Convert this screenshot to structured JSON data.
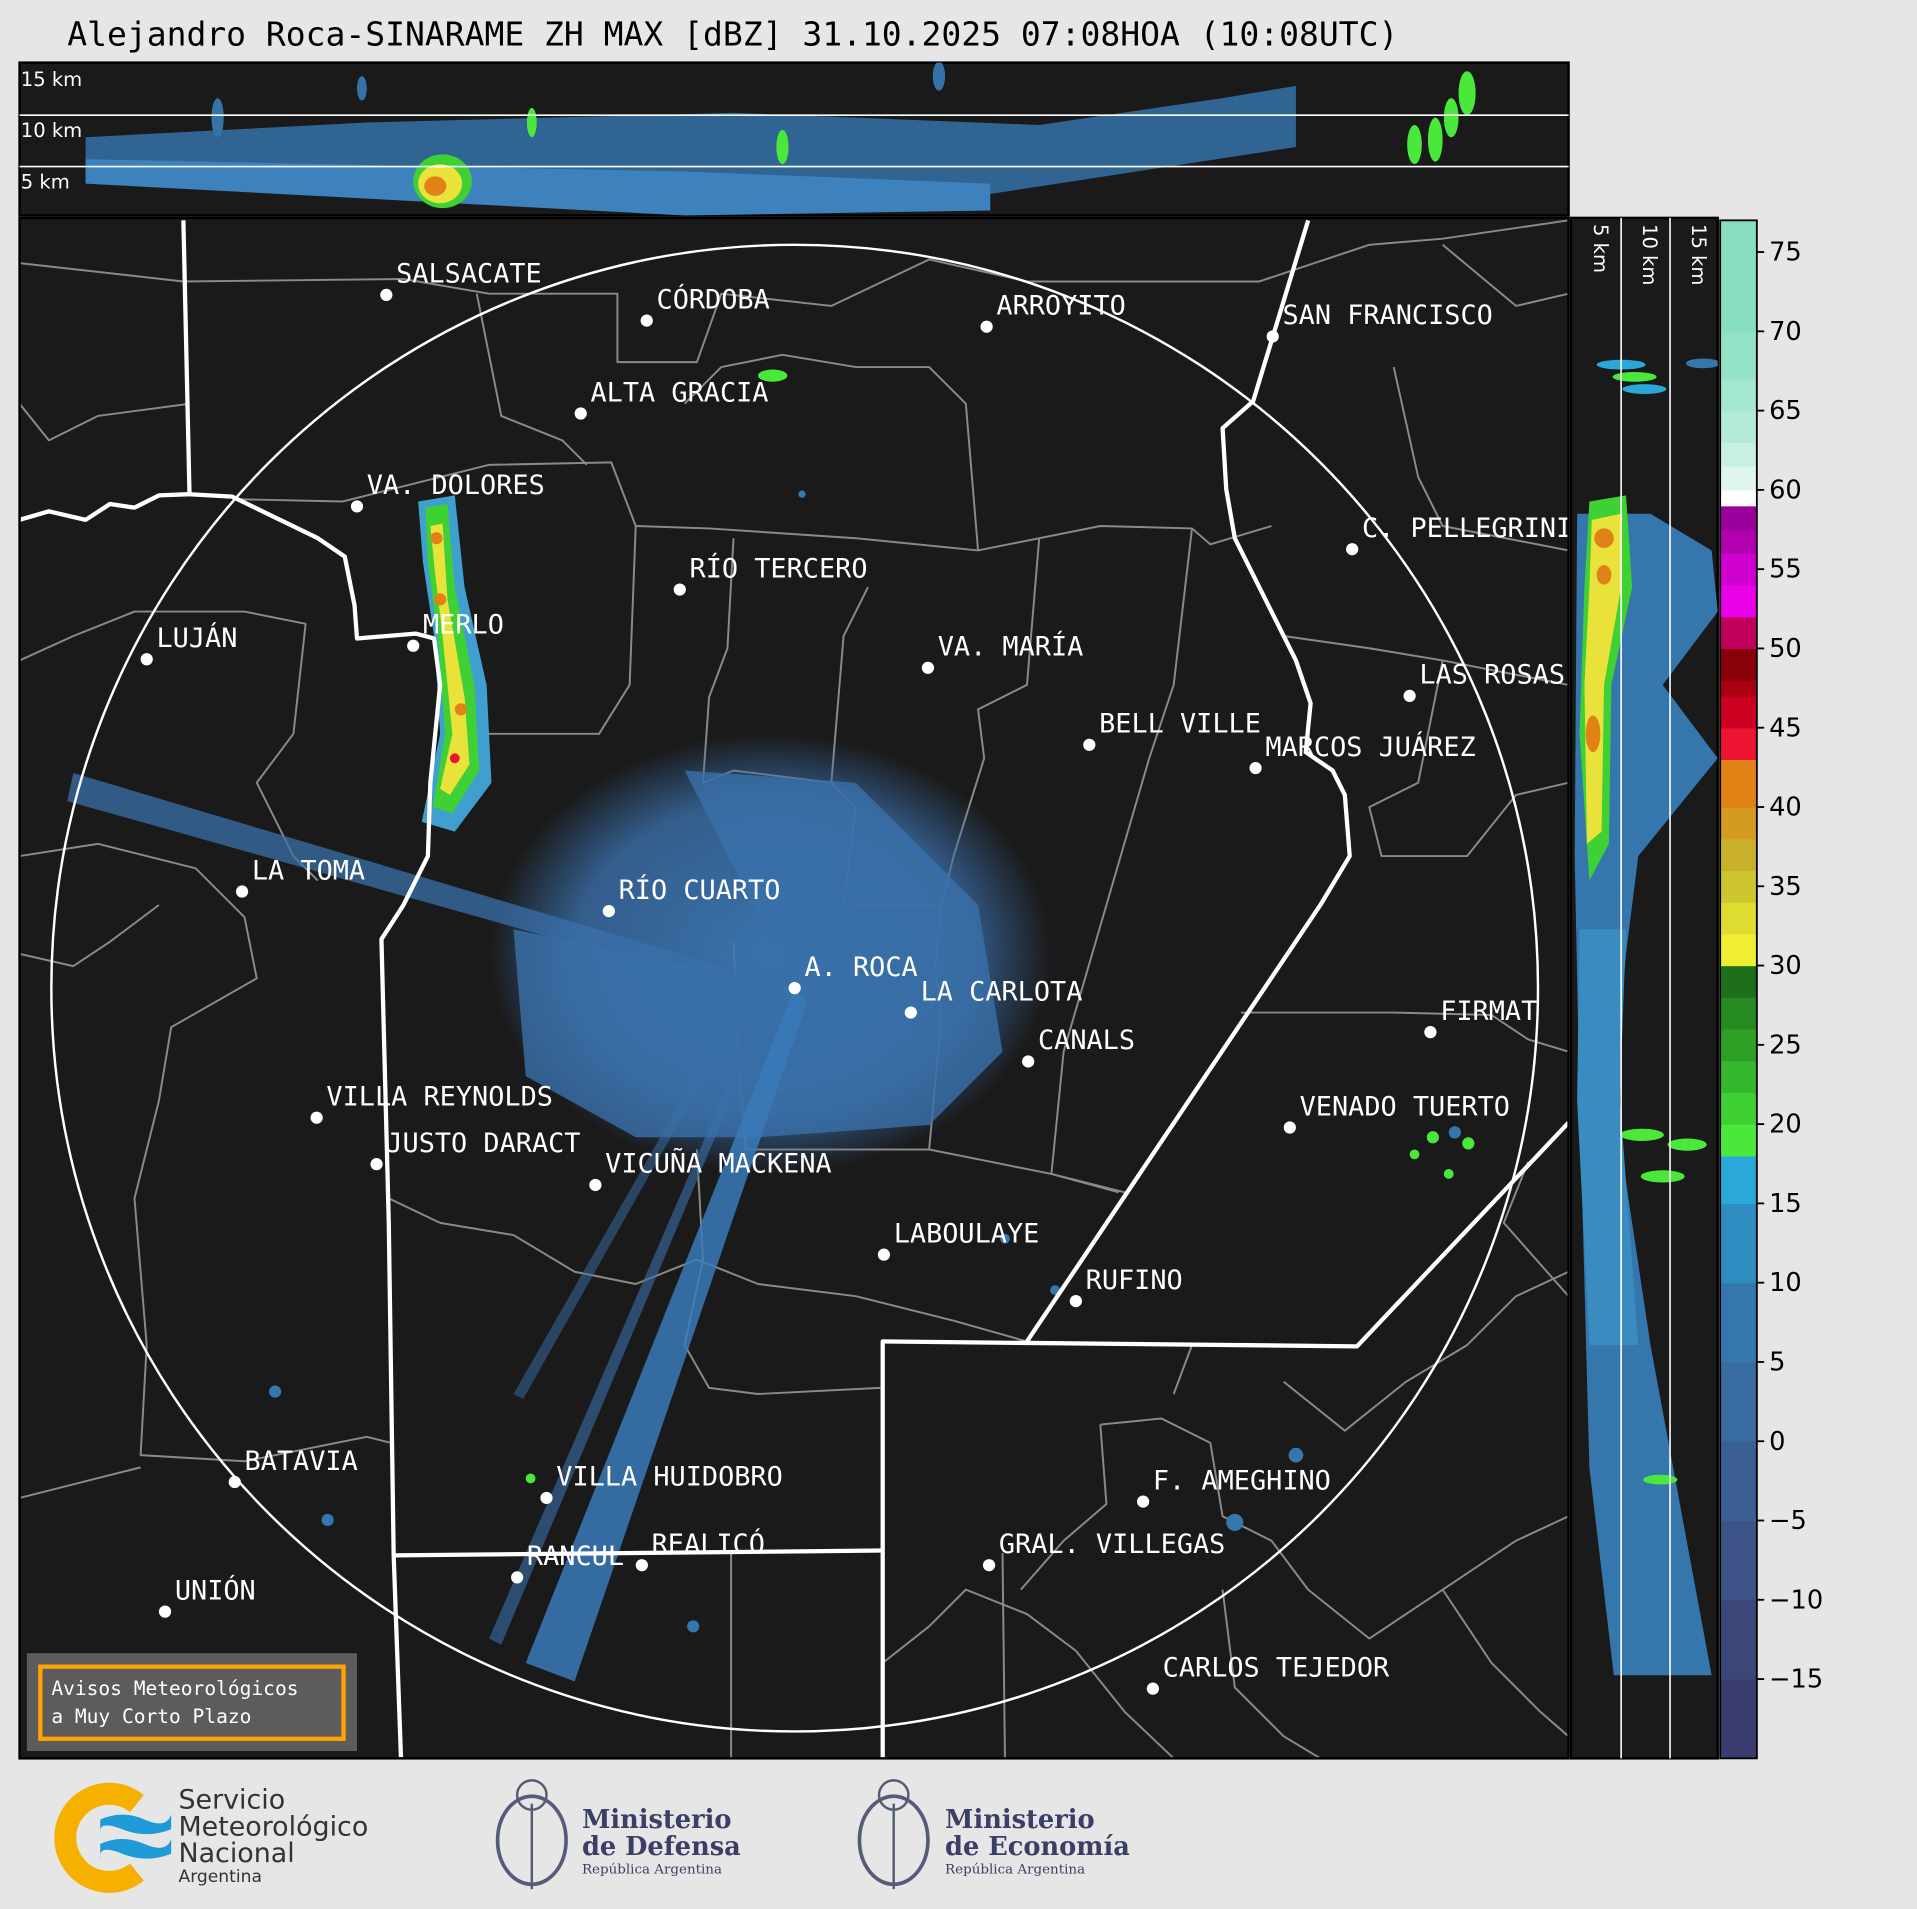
{
  "title": "Alejandro Roca-SINARAME ZH MAX [dBZ] 31.10.2025 07:08HOA (10:08UTC)",
  "top_section": {
    "labels": [
      "15 km",
      "10 km",
      "5 km"
    ]
  },
  "side_section": {
    "labels": [
      "5 km",
      "10 km",
      "15 km"
    ]
  },
  "map": {
    "radar_site": "A. ROCA",
    "range_ring_color": "#ffffff",
    "province_border_color": "#ffffff",
    "department_border_color": "#8a8a8a",
    "background_color": "#1a1a1a",
    "cities": [
      "SALSACATE",
      "CÓRDOBA",
      "ARROYITO",
      "SAN FRANCISCO",
      "ALTA GRACIA",
      "VA. DOLORES",
      "C. PELLEGRINI",
      "RÍO TERCERO",
      "LUJÁN",
      "MERLO",
      "VA. MARÍA",
      "LAS ROSAS",
      "BELL VILLE",
      "MARCOS JUÁREZ",
      "LA TOMA",
      "RÍO CUARTO",
      "A. ROCA",
      "LA CARLOTA",
      "CANALS",
      "FIRMAT",
      "VILLA REYNOLDS",
      "VENADO TUERTO",
      "JUSTO DARACT",
      "VICUÑA MACKENA",
      "LABOULAYE",
      "RUFINO",
      "BATAVIA",
      "VILLA HUIDOBRO",
      "F. AMEGHINO",
      "RANCUL",
      "REALICÓ",
      "GRAL. VILLEGAS",
      "UNIÓN",
      "CARLOS TEJEDOR"
    ]
  },
  "warning_box": {
    "line1": "Avisos Meteorológicos",
    "line2": "a Muy Corto Plazo",
    "border_color": "#ffa500"
  },
  "colorbar": {
    "unit": "dBZ",
    "range": [
      -20,
      77
    ],
    "ticks": [
      "−15",
      "−10",
      "−5",
      "0",
      "5",
      "10",
      "15",
      "20",
      "25",
      "30",
      "35",
      "40",
      "45",
      "50",
      "55",
      "60",
      "65",
      "70",
      "75"
    ],
    "tick_values": [
      -15,
      -10,
      -5,
      0,
      5,
      10,
      15,
      20,
      25,
      30,
      35,
      40,
      45,
      50,
      55,
      60,
      65,
      70,
      75
    ],
    "segments": [
      [
        -20,
        -15,
        "#3b3d6e"
      ],
      [
        -15,
        -10,
        "#3d4679"
      ],
      [
        -10,
        -5,
        "#3d5286"
      ],
      [
        -5,
        0,
        "#3b5f93"
      ],
      [
        0,
        5,
        "#386b9f"
      ],
      [
        5,
        10,
        "#3577ad"
      ],
      [
        10,
        15,
        "#2f8cc0"
      ],
      [
        15,
        18,
        "#29a8d9"
      ],
      [
        18,
        20,
        "#4ae83a"
      ],
      [
        20,
        22,
        "#3fd034"
      ],
      [
        22,
        24,
        "#36b82c"
      ],
      [
        24,
        26,
        "#2ea026"
      ],
      [
        26,
        28,
        "#258a20"
      ],
      [
        28,
        30,
        "#1d6f19"
      ],
      [
        30,
        32,
        "#f0ee32"
      ],
      [
        32,
        34,
        "#dedc30"
      ],
      [
        34,
        36,
        "#cdc62e"
      ],
      [
        36,
        38,
        "#c8b02a"
      ],
      [
        38,
        40,
        "#d49a22"
      ],
      [
        40,
        43,
        "#e08216"
      ],
      [
        43,
        45,
        "#ec1430"
      ],
      [
        45,
        47,
        "#cc0020"
      ],
      [
        47,
        48,
        "#aa0010"
      ],
      [
        48,
        50,
        "#880008"
      ],
      [
        50,
        52,
        "#c0005c"
      ],
      [
        52,
        54,
        "#e800e8"
      ],
      [
        54,
        56,
        "#d000d0"
      ],
      [
        56,
        57.5,
        "#b000b0"
      ],
      [
        57.5,
        59,
        "#9a009a"
      ],
      [
        59,
        60,
        "#ffffff"
      ],
      [
        60,
        61.5,
        "#e0f5ec"
      ],
      [
        61.5,
        63,
        "#c8f0e0"
      ],
      [
        63,
        65,
        "#b4ebd6"
      ],
      [
        65,
        67,
        "#a4e7cf"
      ],
      [
        67,
        70,
        "#94e2c6"
      ],
      [
        70,
        77,
        "#88dfc0"
      ]
    ]
  },
  "logos": {
    "smn": {
      "line1": "Servicio",
      "line2": "Meteorológico",
      "line3": "Nacional",
      "line4": "Argentina",
      "orange": "#f6b000",
      "blue": "#1e9ad6"
    },
    "defensa": {
      "line1": "Ministerio",
      "line2": "de Defensa",
      "line3": "República Argentina"
    },
    "economia": {
      "line1": "Ministerio",
      "line2": "de Economía",
      "line3": "República Argentina"
    }
  }
}
